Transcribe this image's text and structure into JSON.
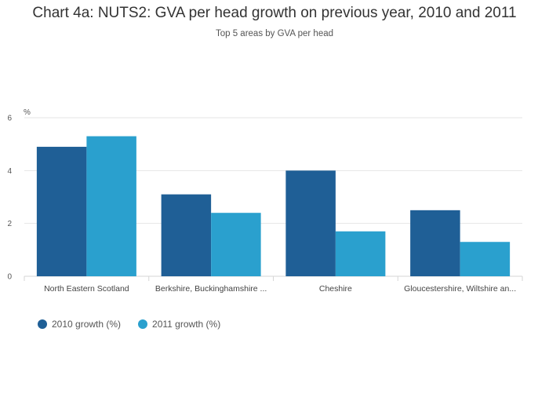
{
  "chart_data": {
    "type": "bar",
    "title": "Chart 4a: NUTS2: GVA per head growth on previous year, 2010 and 2011",
    "subtitle": "Top 5 areas by GVA per head",
    "ylabel": "%",
    "ylim": [
      0,
      6
    ],
    "yticks": [
      0,
      2,
      4,
      6
    ],
    "grid": true,
    "legend_position": "bottom-left",
    "categories": [
      "North Eastern Scotland",
      "Berkshire, Buckinghamshire ...",
      "Cheshire",
      "Gloucestershire, Wiltshire an..."
    ],
    "series": [
      {
        "name": "2010 growth (%)",
        "color": "#1f5f96",
        "values": [
          4.9,
          3.1,
          4.0,
          2.5
        ]
      },
      {
        "name": "2011 growth (%)",
        "color": "#2aa0ce",
        "values": [
          5.3,
          2.4,
          1.7,
          1.3
        ]
      }
    ]
  }
}
